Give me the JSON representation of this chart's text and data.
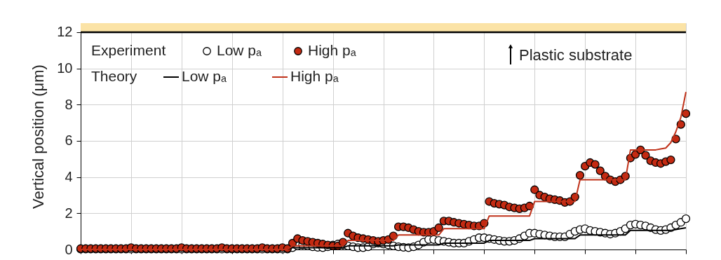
{
  "chart_data": {
    "type": "scatter",
    "ylabel": "Vertical position (μm)",
    "categories": [
      null,
      null,
      null,
      null,
      null,
      null,
      null,
      null,
      null,
      null,
      null,
      null,
      null,
      null,
      null,
      null,
      null,
      null,
      null,
      null,
      null,
      null,
      null,
      null,
      null,
      null,
      null,
      null,
      null,
      null,
      null,
      null,
      null,
      null,
      null,
      null,
      null,
      null,
      null,
      null,
      null,
      null,
      null,
      null,
      null,
      null,
      null,
      null,
      null,
      null,
      null,
      null,
      null,
      null,
      null,
      null,
      null,
      null,
      null,
      null,
      null,
      null,
      null,
      null,
      null,
      null,
      null,
      null,
      null,
      null,
      null,
      null,
      null,
      null,
      null,
      null,
      null,
      null,
      null,
      null,
      null,
      null,
      null,
      null,
      null,
      null,
      null,
      null,
      null,
      null,
      null,
      null,
      null,
      null,
      null,
      null,
      null,
      null,
      null,
      null,
      null,
      null,
      null,
      null,
      null,
      null,
      null,
      null,
      null,
      null,
      null,
      null,
      null,
      null,
      null,
      null,
      null,
      null,
      null,
      null,
      null
    ],
    "series": [
      {
        "name": "Low pₐ",
        "type": "line",
        "marker": "none",
        "color": "#000000",
        "values": [
          0,
          0,
          0,
          0,
          0,
          0,
          0,
          0,
          0,
          0,
          0,
          0,
          0,
          0,
          0,
          0,
          0,
          0,
          0,
          0,
          0,
          0,
          0,
          0,
          0,
          0,
          0,
          0,
          0,
          0,
          0,
          0,
          0,
          0,
          0,
          0,
          0,
          0,
          0,
          0,
          0,
          0,
          0.1,
          0.1,
          0.1,
          0.1,
          0.1,
          0.1,
          0.1,
          0.1,
          0.1,
          0.1,
          0.1,
          0.2,
          0.2,
          0.2,
          0.2,
          0.2,
          0.2,
          0.2,
          0.2,
          0.2,
          0.2,
          0.25,
          0.25,
          0.25,
          0.25,
          0.25,
          0.25,
          0.25,
          0.25,
          0.25,
          0.35,
          0.35,
          0.35,
          0.35,
          0.35,
          0.35,
          0.35,
          0.35,
          0.35,
          0.5,
          0.5,
          0.5,
          0.5,
          0.5,
          0.5,
          0.5,
          0.5,
          0.5,
          0.6,
          0.6,
          0.6,
          0.6,
          0.6,
          0.6,
          0.6,
          0.6,
          0.6,
          0.8,
          0.8,
          0.8,
          0.8,
          0.8,
          0.8,
          0.8,
          0.8,
          0.8,
          0.8,
          1.05,
          1.05,
          1.05,
          1.05,
          1.05,
          1.05,
          1.05,
          1.05,
          1.05,
          1.1,
          1.15,
          1.2
        ]
      },
      {
        "name": "High pₐ",
        "type": "line",
        "marker": "none",
        "color": "#c0321a",
        "values": [
          0,
          0,
          0,
          0,
          0,
          0,
          0,
          0,
          0,
          0,
          0,
          0,
          0,
          0,
          0,
          0,
          0,
          0,
          0,
          0,
          0,
          0,
          0,
          0,
          0,
          0,
          0,
          0,
          0,
          0,
          0,
          0,
          0,
          0,
          0,
          0,
          0,
          0,
          0,
          0,
          0,
          0,
          0.2,
          0.2,
          0.2,
          0.2,
          0.2,
          0.2,
          0.2,
          0.2,
          0.2,
          0.2,
          0.2,
          0.5,
          0.5,
          0.5,
          0.5,
          0.5,
          0.5,
          0.5,
          0.5,
          0.5,
          0.5,
          0.8,
          0.8,
          0.8,
          0.8,
          0.8,
          0.8,
          0.8,
          0.8,
          0.8,
          1.15,
          1.15,
          1.15,
          1.15,
          1.15,
          1.15,
          1.15,
          1.15,
          1.15,
          1.85,
          1.85,
          1.85,
          1.85,
          1.85,
          1.85,
          1.85,
          1.85,
          1.85,
          2.65,
          2.65,
          2.65,
          2.65,
          2.65,
          2.65,
          2.65,
          2.65,
          2.65,
          3.85,
          3.85,
          3.85,
          3.85,
          3.85,
          3.85,
          3.85,
          3.85,
          3.85,
          3.85,
          5.5,
          5.5,
          5.5,
          5.5,
          5.5,
          5.5,
          5.55,
          5.6,
          5.9,
          6.5,
          7.3,
          8.7
        ]
      },
      {
        "name": "Low pₐ",
        "color": "#ffffff",
        "values": [
          0.02,
          0.02,
          0.02,
          0.02,
          0.02,
          0.02,
          0.02,
          0.02,
          0.02,
          0.02,
          0.02,
          0.02,
          0.02,
          0.02,
          0.02,
          0.02,
          0.02,
          0.02,
          0.02,
          0.02,
          0.02,
          0.02,
          0.02,
          0.02,
          0.02,
          0.02,
          0.02,
          0.02,
          0.02,
          0.02,
          0.02,
          0.02,
          0.02,
          0.02,
          0.02,
          0.02,
          0.02,
          0.02,
          0.02,
          0.02,
          0.02,
          0.02,
          0.1,
          0.2,
          0.25,
          0.2,
          0.15,
          0.12,
          0.1,
          0.15,
          0.25,
          0.3,
          0.25,
          0.2,
          0.15,
          0.1,
          0.1,
          0.15,
          0.3,
          0.35,
          0.3,
          0.25,
          0.2,
          0.15,
          0.12,
          0.1,
          0.15,
          0.25,
          0.4,
          0.55,
          0.55,
          0.5,
          0.45,
          0.4,
          0.35,
          0.35,
          0.35,
          0.45,
          0.55,
          0.65,
          0.65,
          0.6,
          0.55,
          0.5,
          0.45,
          0.45,
          0.5,
          0.6,
          0.75,
          0.9,
          0.9,
          0.85,
          0.8,
          0.75,
          0.7,
          0.7,
          0.7,
          0.85,
          1.0,
          1.1,
          1.15,
          1.05,
          1.0,
          0.95,
          0.9,
          0.85,
          0.9,
          1.0,
          1.15,
          1.35,
          1.4,
          1.35,
          1.3,
          1.2,
          1.1,
          1.05,
          1.1,
          1.2,
          1.35,
          1.5,
          1.7
        ]
      },
      {
        "name": "High pₐ",
        "color": "#c42a12",
        "values": [
          0.05,
          0.05,
          0.05,
          0.05,
          0.05,
          0.05,
          0.05,
          0.05,
          0.05,
          0.05,
          0.1,
          0.05,
          0.05,
          0.05,
          0.05,
          0.05,
          0.05,
          0.05,
          0.05,
          0.05,
          0.1,
          0.05,
          0.05,
          0.05,
          0.05,
          0.05,
          0.05,
          0.05,
          0.1,
          0.05,
          0.05,
          0.05,
          0.05,
          0.05,
          0.05,
          0.05,
          0.1,
          0.05,
          0.05,
          0.05,
          0.1,
          0.05,
          0.35,
          0.6,
          0.5,
          0.45,
          0.4,
          0.35,
          0.3,
          0.25,
          0.2,
          0.2,
          0.4,
          0.9,
          0.75,
          0.65,
          0.6,
          0.55,
          0.5,
          0.45,
          0.5,
          0.55,
          0.75,
          1.25,
          1.25,
          1.2,
          1.1,
          1.0,
          0.95,
          0.95,
          1.0,
          1.2,
          1.57,
          1.57,
          1.5,
          1.45,
          1.4,
          1.35,
          1.3,
          1.3,
          1.45,
          2.65,
          2.55,
          2.5,
          2.45,
          2.35,
          2.3,
          2.25,
          2.3,
          2.4,
          3.3,
          3.0,
          2.9,
          2.8,
          2.75,
          2.7,
          2.6,
          2.65,
          2.9,
          4.1,
          4.6,
          4.8,
          4.7,
          4.35,
          4.05,
          3.85,
          3.75,
          3.85,
          4.05,
          5.05,
          5.25,
          5.5,
          5.2,
          4.9,
          4.8,
          4.75,
          4.85,
          4.95,
          6.1,
          6.9,
          7.5
        ]
      }
    ],
    "ylim": [
      0,
      12.5
    ],
    "yticks": [
      0,
      2,
      4,
      6,
      8,
      10,
      12
    ],
    "bands": [
      {
        "axis": "y",
        "from": 12,
        "to": 12.5,
        "color": "#fbe3a6"
      }
    ],
    "ref_lines": [
      {
        "axis": "y",
        "value": 12,
        "color": "#000000"
      }
    ],
    "annotations": [
      "Experiment",
      "Theory",
      "Plastic substrate"
    ],
    "marker": "circle",
    "grid": true,
    "legend": "top left",
    "tick_labels": "y"
  }
}
